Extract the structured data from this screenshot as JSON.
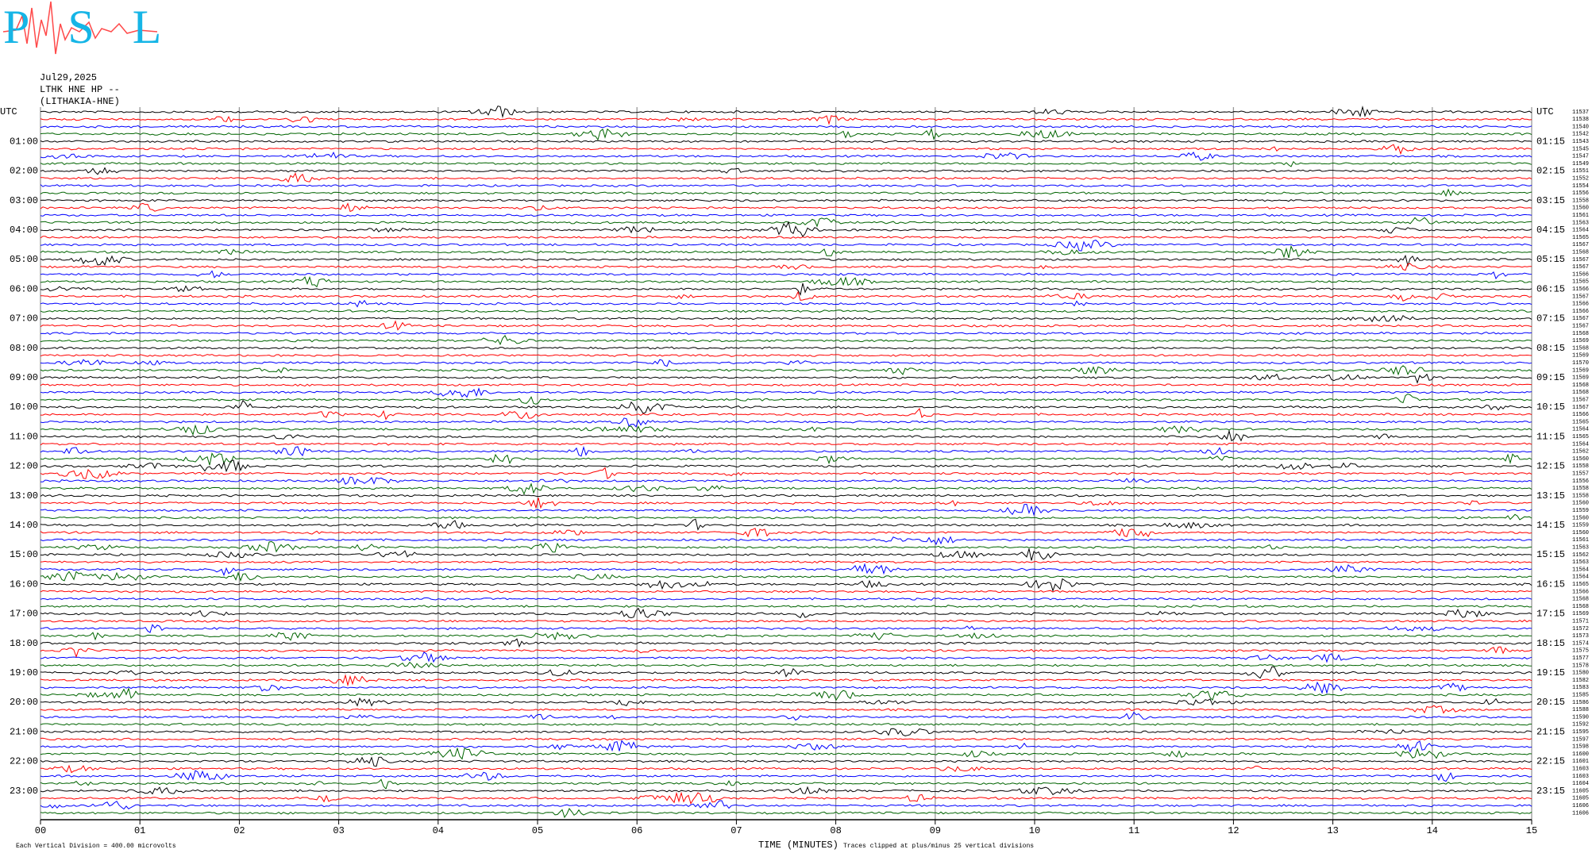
{
  "chart_data": {
    "type": "helicorder",
    "logo": "PSL",
    "date": "Jul29,2025",
    "station": "LTHK HNE HP --",
    "site": "(LITHAKIA-HNE)",
    "left_labels": [
      "UTC",
      "01:00",
      "02:00",
      "03:00",
      "04:00",
      "05:00",
      "06:00",
      "07:00",
      "08:00",
      "09:00",
      "10:00",
      "11:00",
      "12:00",
      "13:00",
      "14:00",
      "15:00",
      "16:00",
      "17:00",
      "18:00",
      "19:00",
      "20:00",
      "21:00",
      "22:00",
      "23:00"
    ],
    "right_labels": [
      "UTC",
      "01:15",
      "02:15",
      "03:15",
      "04:15",
      "05:15",
      "06:15",
      "07:15",
      "08:15",
      "09:15",
      "10:15",
      "11:15",
      "12:15",
      "13:15",
      "14:15",
      "15:15",
      "16:15",
      "17:15",
      "18:15",
      "19:15",
      "20:15",
      "21:15",
      "22:15",
      "23:15"
    ],
    "row_values": [
      11537,
      11538,
      11540,
      11542,
      11543,
      11545,
      11547,
      11549,
      11551,
      11552,
      11554,
      11556,
      11558,
      11560,
      11561,
      11563,
      11564,
      11565,
      11567,
      11568,
      11567,
      11567,
      11566,
      11565,
      11566,
      11567,
      11566,
      11566,
      11567,
      11567,
      11568,
      11569,
      11568,
      11569,
      11570,
      11569,
      11569,
      11568,
      11568,
      11567,
      11567,
      11566,
      11565,
      11564,
      11565,
      11564,
      11562,
      11560,
      11558,
      11557,
      11556,
      11558,
      11558,
      11560,
      11559,
      11560,
      11559,
      11560,
      11561,
      11563,
      11562,
      11563,
      11564,
      11564,
      11565,
      11566,
      11568,
      11568,
      11569,
      11571,
      11572,
      11573,
      11574,
      11575,
      11577,
      11578,
      11580,
      11582,
      11583,
      11585,
      11586,
      11588,
      11590,
      11592,
      11595,
      11597,
      11598,
      11600,
      11601,
      11603,
      11603,
      11604,
      11605,
      11605,
      11606,
      11606
    ],
    "trace_colors": [
      "#000000",
      "#ff0000",
      "#0000ff",
      "#006400"
    ],
    "xlim": [
      0,
      15
    ],
    "xticks": [
      {
        "value": 0,
        "label": "00"
      },
      {
        "value": 1,
        "label": "01"
      },
      {
        "value": 2,
        "label": "02"
      },
      {
        "value": 3,
        "label": "03"
      },
      {
        "value": 4,
        "label": "04"
      },
      {
        "value": 5,
        "label": "05"
      },
      {
        "value": 6,
        "label": "06"
      },
      {
        "value": 7,
        "label": "07"
      },
      {
        "value": 8,
        "label": "08"
      },
      {
        "value": 9,
        "label": "09"
      },
      {
        "value": 10,
        "label": "10"
      },
      {
        "value": 11,
        "label": "11"
      },
      {
        "value": 12,
        "label": "12"
      },
      {
        "value": 13,
        "label": "13"
      },
      {
        "value": 14,
        "label": "14"
      },
      {
        "value": 15,
        "label": "15"
      }
    ],
    "xlabel": "TIME (MINUTES)",
    "scale_note": "Each Vertical Division =  400.00 microvolts",
    "clip_note": "Traces clipped at plus/minus 25 vertical divisions",
    "grid": true
  }
}
